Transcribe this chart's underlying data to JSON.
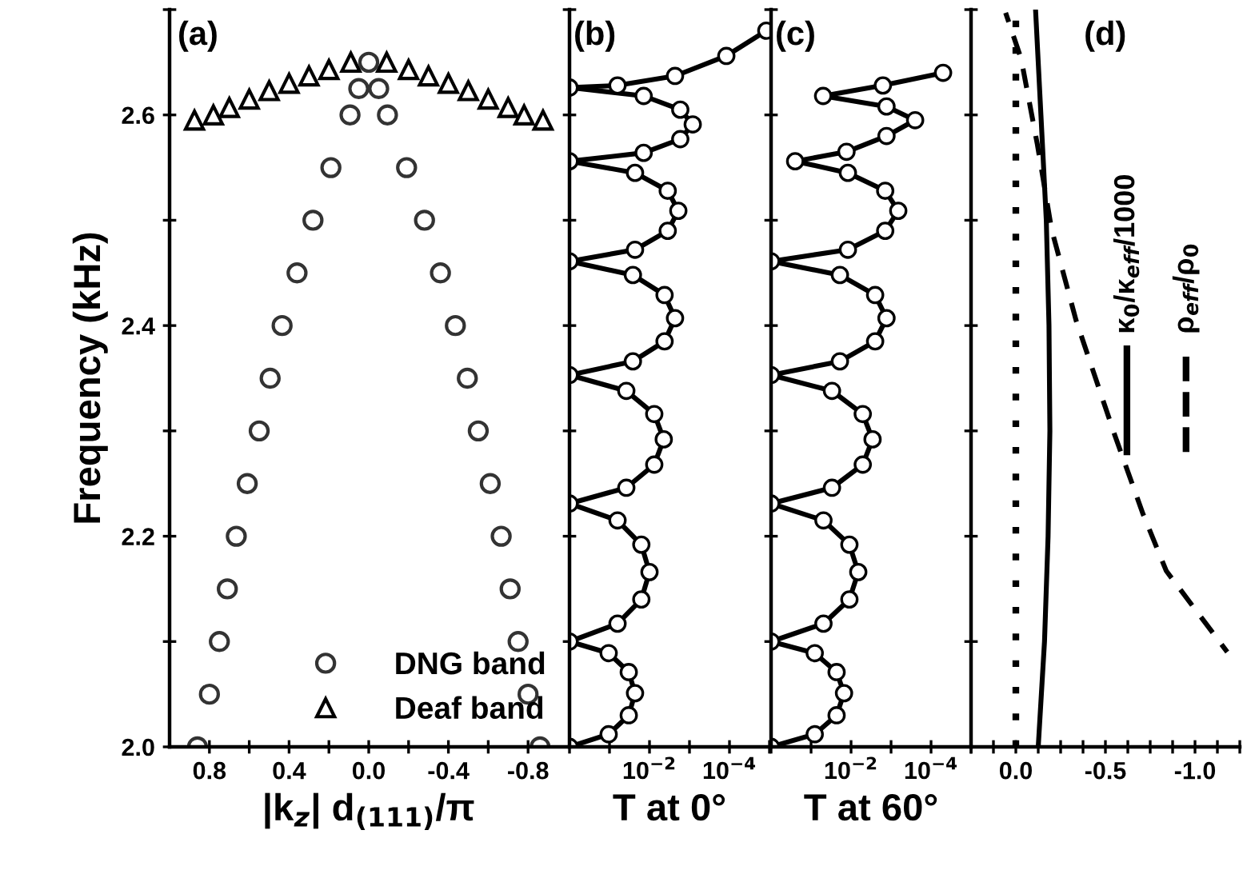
{
  "chart_data": [
    {
      "type": "scatter",
      "annotations": [
        "(a)"
      ],
      "xlabel": "|k$_{z}$| d$_{(111)}$/π",
      "ylabel": "Frequency (kHz)",
      "xlim": [
        1.0,
        -1.0
      ],
      "xticks": [
        0.8,
        {
          "value": 0.6,
          "label": null
        },
        0.4,
        {
          "value": 0.2,
          "label": null
        },
        {
          "value": 0.0,
          "label": "0.0"
        },
        {
          "value": -0.2,
          "label": null
        },
        -0.4,
        {
          "value": -0.6,
          "label": null
        },
        -0.8
      ],
      "ylim": [
        2.0,
        2.7
      ],
      "yticks": [
        {
          "value": 2.0,
          "label": "2.0"
        },
        {
          "value": 2.1,
          "label": null
        },
        2.2,
        {
          "value": 2.3,
          "label": null
        },
        2.4,
        {
          "value": 2.5,
          "label": null
        },
        2.6,
        {
          "value": 2.7,
          "label": null
        }
      ],
      "legend": "bottom right",
      "grid": false,
      "series": [
        {
          "name": "DNG band",
          "color": "#333333",
          "marker": "circle",
          "x": [
            0.86,
            0.8,
            0.75,
            0.71,
            0.665,
            0.61,
            0.55,
            0.495,
            0.435,
            0.36,
            0.28,
            0.19,
            0.094,
            0.05,
            0.0,
            -0.05,
            -0.094,
            -0.19,
            -0.28,
            -0.36,
            -0.435,
            -0.495,
            -0.55,
            -0.61,
            -0.665,
            -0.71,
            -0.75,
            -0.8,
            -0.86
          ],
          "values": [
            2.0,
            2.05,
            2.1,
            2.15,
            2.2,
            2.25,
            2.3,
            2.35,
            2.4,
            2.45,
            2.5,
            2.55,
            2.6,
            2.625,
            2.65,
            2.625,
            2.6,
            2.55,
            2.5,
            2.45,
            2.4,
            2.35,
            2.3,
            2.25,
            2.2,
            2.15,
            2.1,
            2.05,
            2.0
          ]
        },
        {
          "name": "Deaf band",
          "color": "#000000",
          "marker": "triangle",
          "x": [
            0.875,
            0.78,
            0.7,
            0.6,
            0.5,
            0.4,
            0.3,
            0.2,
            0.09,
            -0.09,
            -0.2,
            -0.3,
            -0.4,
            -0.5,
            -0.6,
            -0.7,
            -0.78,
            -0.875
          ],
          "values": [
            2.595,
            2.6,
            2.607,
            2.615,
            2.623,
            2.63,
            2.637,
            2.643,
            2.65,
            2.65,
            2.643,
            2.637,
            2.63,
            2.623,
            2.615,
            2.607,
            2.6,
            2.595
          ]
        }
      ]
    },
    {
      "type": "line",
      "annotations": [
        "(b)"
      ],
      "xlabel": "T at 0°",
      "log": "x",
      "tick_labels": "x",
      "xlim": [
        1,
        1e-05
      ],
      "xticks": [
        {
          "value": 1,
          "label": null
        },
        {
          "value": 0.1,
          "label": null
        },
        {
          "value": 0.01,
          "label": "10$^{−2}$"
        },
        {
          "value": 0.001,
          "label": null
        },
        {
          "value": 0.0001,
          "label": "10$^{−4}$"
        },
        {
          "value": 1e-05,
          "label": null
        }
      ],
      "ylim": [
        2.0,
        2.7
      ],
      "yticks": [
        2.0,
        2.1,
        2.2,
        2.3,
        2.4,
        2.5,
        2.6,
        2.7
      ],
      "series": [
        {
          "color": "#000000",
          "marker": "circle",
          "line_style": "solid",
          "x": [
            1,
            0.105,
            0.033,
            0.023,
            0.033,
            0.105,
            1,
            0.063,
            0.016,
            0.01,
            0.016,
            0.063,
            1,
            0.038,
            0.0076,
            0.0044,
            0.0076,
            0.038,
            1,
            0.026,
            0.0042,
            0.0023,
            0.0042,
            0.026,
            1,
            0.023,
            0.0035,
            0.0019,
            0.0035,
            0.023,
            1,
            0.014,
            0.0017,
            0.00083,
            0.0017,
            0.014,
            1,
            0.063,
            0.0023,
            0.00012,
            1.2e-05
          ],
          "values": [
            2.0,
            2.012,
            2.03,
            2.051,
            2.071,
            2.089,
            2.1,
            2.117,
            2.14,
            2.166,
            2.192,
            2.215,
            2.231,
            2.246,
            2.268,
            2.292,
            2.316,
            2.338,
            2.353,
            2.366,
            2.385,
            2.407,
            2.429,
            2.448,
            2.461,
            2.472,
            2.49,
            2.509,
            2.528,
            2.545,
            2.556,
            2.564,
            2.577,
            2.591,
            2.605,
            2.618,
            2.626,
            2.628,
            2.637,
            2.656,
            2.68
          ]
        }
      ]
    },
    {
      "type": "line",
      "annotations": [
        "(c)"
      ],
      "xlabel": "T at 60°",
      "log": "x",
      "tick_labels": "x",
      "xlim": [
        1,
        1e-05
      ],
      "xticks": [
        {
          "value": 1,
          "label": null
        },
        {
          "value": 0.1,
          "label": null
        },
        {
          "value": 0.01,
          "label": "10$^{−2}$"
        },
        {
          "value": 0.001,
          "label": null
        },
        {
          "value": 0.0001,
          "label": "10$^{−4}$"
        },
        {
          "value": 1e-05,
          "label": null
        }
      ],
      "ylim": [
        2.0,
        2.7
      ],
      "yticks": [
        2.0,
        2.1,
        2.2,
        2.3,
        2.4,
        2.5,
        2.6,
        2.7
      ],
      "series": [
        {
          "color": "#000000",
          "marker": "circle",
          "line_style": "solid",
          "x": [
            1,
            0.081,
            0.023,
            0.015,
            0.023,
            0.081,
            1,
            0.049,
            0.011,
            0.0066,
            0.011,
            0.049,
            1,
            0.03,
            0.0051,
            0.0029,
            0.0051,
            0.03,
            1,
            0.019,
            0.0025,
            0.0013,
            0.0025,
            0.019,
            1,
            0.012,
            0.0014,
            0.00066,
            0.0014,
            0.012,
            0.25,
            0.013,
            0.0013,
            0.00025,
            0.0013,
            0.05,
            0.0016,
            5e-05
          ],
          "values": [
            2.0,
            2.012,
            2.03,
            2.051,
            2.071,
            2.089,
            2.1,
            2.117,
            2.14,
            2.166,
            2.192,
            2.215,
            2.231,
            2.246,
            2.268,
            2.292,
            2.316,
            2.338,
            2.353,
            2.366,
            2.385,
            2.407,
            2.429,
            2.448,
            2.461,
            2.472,
            2.49,
            2.509,
            2.528,
            2.545,
            2.556,
            2.565,
            2.58,
            2.595,
            2.608,
            2.618,
            2.628,
            2.64
          ]
        }
      ]
    },
    {
      "type": "line",
      "annotations": [
        "(d)"
      ],
      "tick_labels": "x",
      "legend": "right",
      "xlim": [
        0.25,
        -1.25
      ],
      "xticks": [
        {
          "value": 0.25,
          "label": null
        },
        {
          "value": 0.125,
          "label": null
        },
        {
          "value": 0.0,
          "label": "0.0"
        },
        {
          "value": -0.125,
          "label": null
        },
        {
          "value": -0.25,
          "label": null
        },
        {
          "value": -0.375,
          "label": null
        },
        {
          "value": -0.5,
          "label": "-0.5"
        },
        {
          "value": -0.625,
          "label": null
        },
        {
          "value": -0.75,
          "label": null
        },
        {
          "value": -0.875,
          "label": null
        },
        {
          "value": -1.0,
          "label": "-1.0"
        },
        {
          "value": -1.125,
          "label": null
        },
        {
          "value": -1.25,
          "label": null
        }
      ],
      "ylim": [
        2.0,
        2.7
      ],
      "yticks": [
        2.0,
        2.1,
        2.2,
        2.3,
        2.4,
        2.5,
        2.6,
        2.7
      ],
      "ref_lines": [
        {
          "axis": "x",
          "value": 0.0,
          "label": null,
          "color": "#000000",
          "line_style": "dotted"
        }
      ],
      "series": [
        {
          "name": "κ$_{0}$/κ$_{eff}$/1000",
          "color": "#000000",
          "line_style": "solid",
          "x": [
            -0.125,
            -0.16,
            -0.18,
            -0.19,
            -0.185,
            -0.17,
            -0.14,
            -0.11
          ],
          "values": [
            2.0,
            2.1,
            2.2,
            2.3,
            2.4,
            2.5,
            2.6,
            2.7
          ]
        },
        {
          "name": "ρ$_{eff}$/ρ$_{0}$",
          "color": "#000000",
          "line_style": "dashed",
          "x": [
            -1.18,
            -0.84,
            -0.71,
            -0.55,
            -0.336,
            -0.2,
            -0.12,
            -0.03,
            0.057
          ],
          "values": [
            2.09,
            2.167,
            2.221,
            2.297,
            2.405,
            2.491,
            2.572,
            2.653,
            2.697
          ]
        }
      ]
    }
  ]
}
